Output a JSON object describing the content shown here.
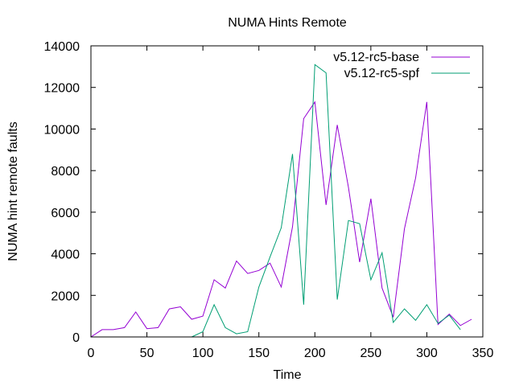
{
  "chart_data": {
    "type": "line",
    "title": "NUMA Hints Remote",
    "xlabel": "Time",
    "ylabel": "NUMA hint remote faults",
    "xlim": [
      0,
      350
    ],
    "ylim": [
      0,
      14000
    ],
    "x_ticks": [
      0,
      50,
      100,
      150,
      200,
      250,
      300,
      350
    ],
    "y_ticks": [
      0,
      2000,
      4000,
      6000,
      8000,
      10000,
      12000,
      14000
    ],
    "grid": false,
    "legend_position": "top-right",
    "series": [
      {
        "name": "v5.12-rc5-base",
        "color": "#9400d3",
        "points": [
          [
            0,
            0
          ],
          [
            10,
            350
          ],
          [
            20,
            350
          ],
          [
            30,
            450
          ],
          [
            40,
            1200
          ],
          [
            50,
            400
          ],
          [
            60,
            450
          ],
          [
            70,
            1350
          ],
          [
            80,
            1450
          ],
          [
            90,
            850
          ],
          [
            100,
            1000
          ],
          [
            110,
            2750
          ],
          [
            120,
            2350
          ],
          [
            130,
            3650
          ],
          [
            140,
            3050
          ],
          [
            150,
            3200
          ],
          [
            160,
            3550
          ],
          [
            170,
            2400
          ],
          [
            180,
            5300
          ],
          [
            190,
            10500
          ],
          [
            200,
            11300
          ],
          [
            210,
            6350
          ],
          [
            220,
            10200
          ],
          [
            230,
            7200
          ],
          [
            240,
            3600
          ],
          [
            250,
            6650
          ],
          [
            260,
            2350
          ],
          [
            270,
            950
          ],
          [
            280,
            5200
          ],
          [
            290,
            7650
          ],
          [
            300,
            11300
          ],
          [
            310,
            600
          ],
          [
            320,
            1100
          ],
          [
            330,
            550
          ],
          [
            340,
            850
          ]
        ]
      },
      {
        "name": "v5.12-rc5-spf",
        "color": "#009e73",
        "points": [
          [
            90,
            0
          ],
          [
            100,
            250
          ],
          [
            110,
            1550
          ],
          [
            120,
            450
          ],
          [
            130,
            150
          ],
          [
            140,
            250
          ],
          [
            150,
            2400
          ],
          [
            160,
            3850
          ],
          [
            170,
            5250
          ],
          [
            180,
            8800
          ],
          [
            190,
            1550
          ],
          [
            200,
            13100
          ],
          [
            210,
            12700
          ],
          [
            220,
            1800
          ],
          [
            230,
            5600
          ],
          [
            240,
            5450
          ],
          [
            250,
            2750
          ],
          [
            260,
            4050
          ],
          [
            270,
            700
          ],
          [
            280,
            1350
          ],
          [
            290,
            800
          ],
          [
            300,
            1550
          ],
          [
            310,
            650
          ],
          [
            320,
            1050
          ],
          [
            330,
            350
          ]
        ]
      }
    ]
  }
}
